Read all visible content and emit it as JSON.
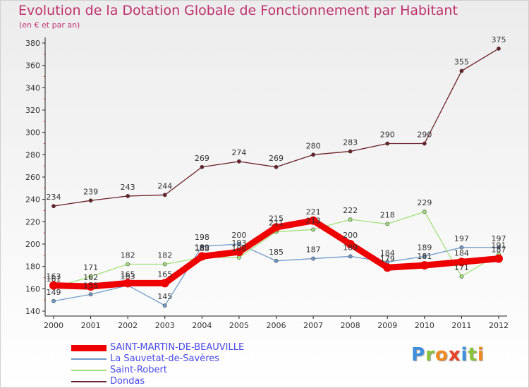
{
  "chart_data": {
    "type": "line",
    "title": "Evolution de la Dotation Globale de Fonctionnement par Habitant",
    "subtitle": "(en € et par an)",
    "xlabel": "",
    "ylabel": "",
    "ylim": [
      140,
      380
    ],
    "yticks": [
      140,
      160,
      180,
      200,
      220,
      240,
      260,
      280,
      300,
      320,
      340,
      360,
      380
    ],
    "categories": [
      "2000",
      "2001",
      "2002",
      "2003",
      "2004",
      "2005",
      "2006",
      "2007",
      "2008",
      "2009",
      "2010",
      "2011",
      "2012"
    ],
    "grid": false,
    "legend_position": "bottom-left",
    "series": [
      {
        "name": "Dondas",
        "color": "#6b1f2a",
        "values": [
          234,
          239,
          243,
          244,
          269,
          274,
          269,
          280,
          283,
          290,
          290,
          355,
          375
        ]
      },
      {
        "name": "La Sauvetat-de-Savères",
        "color": "#6e9ac8",
        "values": [
          149,
          155,
          163,
          145,
          198,
          200,
          185,
          187,
          189,
          184,
          189,
          197,
          197
        ]
      },
      {
        "name": "Saint-Robert",
        "color": "#a2e07a",
        "values": [
          161,
          171,
          182,
          182,
          188,
          188,
          211,
          213,
          222,
          218,
          229,
          171,
          191
        ]
      },
      {
        "name": "SAINT-MARTIN-DE-BEAUVILLE",
        "color": "#ee0000",
        "values": [
          163,
          162,
          165,
          165,
          189,
          193,
          215,
          221,
          200,
          179,
          181,
          184,
          187
        ]
      }
    ],
    "data_label_texts": [
      [
        "234",
        "239",
        "243",
        "244",
        "269",
        "274",
        "269",
        "280",
        "283",
        "290",
        "290",
        "355",
        "375"
      ],
      [
        "149",
        "155",
        "163",
        "145",
        "198",
        "200",
        "185",
        "187",
        "189",
        "184",
        "189",
        "197",
        "197"
      ],
      [
        "161",
        "171",
        "182",
        "182",
        "188",
        "188",
        "211",
        "213",
        "222",
        "218",
        "229",
        "171",
        "191"
      ],
      [
        "163",
        "162",
        "165",
        "165",
        "189",
        "193",
        "215",
        "221",
        "200",
        "179",
        "181",
        "184",
        "187"
      ]
    ]
  },
  "legend": [
    {
      "label": "SAINT-MARTIN-DE-BEAUVILLE",
      "color": "#ee0000"
    },
    {
      "label": "La Sauvetat-de-Savères",
      "color": "#6e9ac8"
    },
    {
      "label": "Saint-Robert",
      "color": "#a2e07a"
    },
    {
      "label": "Dondas",
      "color": "#6b1f2a"
    }
  ],
  "brand": {
    "letters": [
      "P",
      "r",
      "o",
      "x",
      "i",
      "t",
      "i"
    ]
  }
}
